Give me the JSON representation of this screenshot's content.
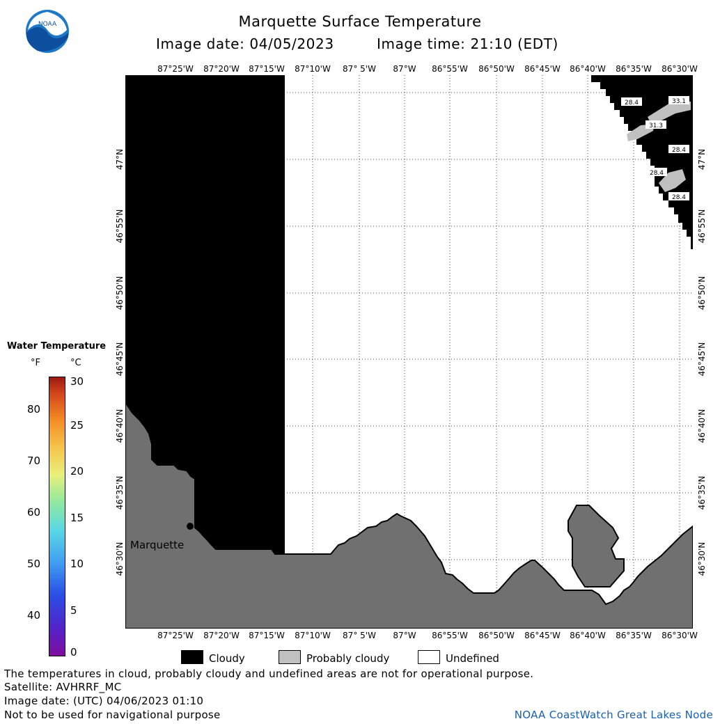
{
  "header": {
    "title": "Marquette Surface Temperature",
    "image_date": "Image date: 04/05/2023",
    "image_time": "Image time: 21:10 (EDT)",
    "logo_text": "NOAA"
  },
  "map": {
    "longitude_labels": [
      "87°25'W",
      "87°20'W",
      "87°15'W",
      "87°10'W",
      "87° 5'W",
      "87°W",
      "86°55'W",
      "86°50'W",
      "86°45'W",
      "86°40'W",
      "86°35'W",
      "86°30'W"
    ],
    "latitude_labels": [
      "47°N",
      "46°55'N",
      "46°50'N",
      "46°45'N",
      "46°40'N",
      "46°35'N",
      "46°30'N"
    ],
    "place_label": "Marquette",
    "temperature_labels": [
      "28.4",
      "33.1",
      "31.3",
      "28.4",
      "28.4",
      "28.4"
    ],
    "colors": {
      "cloudy": "#000000",
      "probably_cloudy": "#c0c0c0",
      "undefined": "#ffffff",
      "land": "#707070"
    }
  },
  "legend": {
    "title": "Water Temperature",
    "unit_f": "°F",
    "unit_c": "°C",
    "fahrenheit_ticks": [
      "80",
      "70",
      "60",
      "50",
      "40"
    ],
    "celsius_ticks": [
      "30",
      "25",
      "20",
      "15",
      "10",
      "5",
      "0"
    ]
  },
  "key": {
    "cloudy": "Cloudy",
    "probably_cloudy": "Probably cloudy",
    "undefined": "Undefined"
  },
  "footer": {
    "note": "The temperatures in cloud, probably cloudy and undefined areas are not for operational purpose.",
    "satellite": "Satellite: AVHRRF_MC",
    "utc_date": "Image date: (UTC) 04/06/2023  01:10",
    "nav_warning": "Not to be used for navigational purpose",
    "credit": "NOAA CoastWatch Great Lakes Node"
  }
}
